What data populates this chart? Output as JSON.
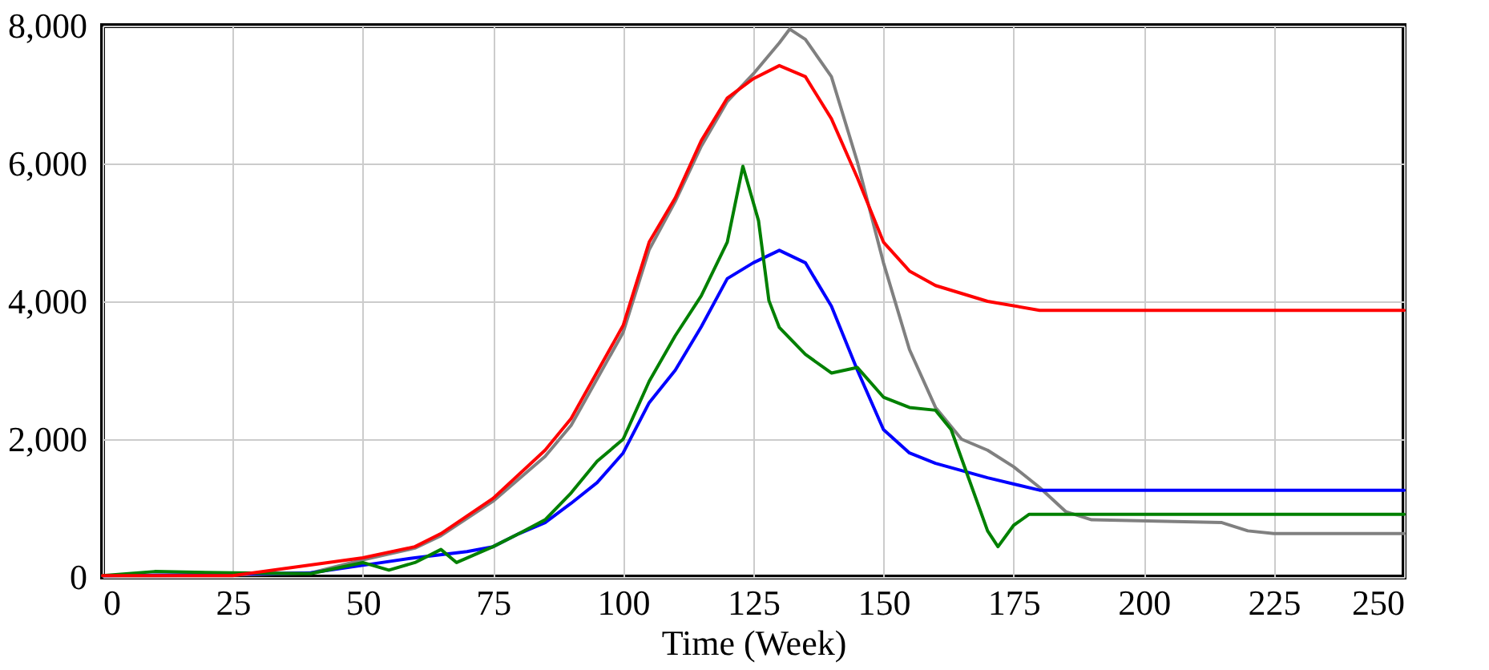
{
  "chart_data": {
    "type": "line",
    "xlabel": "Time (Week)",
    "xlim": [
      0,
      250
    ],
    "xticks": [
      0,
      25,
      50,
      75,
      100,
      125,
      150,
      175,
      200,
      225,
      250
    ],
    "ylim": [
      0,
      8000
    ],
    "yticks": [
      0,
      {
        "value": 2000,
        "label": "2,000"
      },
      {
        "value": 4000,
        "label": "4,000"
      },
      {
        "value": 6000,
        "label": "6,000"
      },
      {
        "value": 8000,
        "label": "8,000"
      }
    ],
    "grid": true,
    "line_style": "solid",
    "x": [
      0,
      10,
      25,
      40,
      50,
      60,
      65,
      75,
      85,
      90,
      100,
      105,
      110,
      115,
      120,
      125,
      130,
      132,
      135,
      140,
      145,
      150,
      155,
      160,
      165,
      170,
      175,
      180,
      185,
      190,
      215,
      220,
      225,
      250
    ],
    "series": [
      {
        "color": "#808080",
        "values": [
          20,
          20,
          30,
          60,
          250,
          420,
          600,
          1100,
          1750,
          2200,
          3550,
          4750,
          5450,
          6250,
          6900,
          7300,
          7750,
          7950,
          7800,
          7260,
          6020,
          4560,
          3300,
          2460,
          2000,
          1840,
          1600,
          1300,
          950,
          830,
          790,
          670,
          630,
          630
        ]
      },
      {
        "color": "#0000ff",
        "x": [
          0,
          25,
          40,
          50,
          60,
          70,
          75,
          80,
          85,
          90,
          95,
          100,
          105,
          110,
          115,
          120,
          125,
          130,
          135,
          140,
          145,
          150,
          155,
          160,
          170,
          180,
          250
        ],
        "values": [
          20,
          40,
          60,
          170,
          280,
          370,
          440,
          630,
          790,
          1070,
          1370,
          1800,
          2530,
          3000,
          3630,
          4330,
          4560,
          4740,
          4560,
          3930,
          3000,
          2140,
          1800,
          1650,
          1440,
          1260,
          1260
        ]
      },
      {
        "color": "#008000",
        "x": [
          0,
          10,
          25,
          40,
          50,
          55,
          60,
          65,
          68,
          75,
          80,
          85,
          90,
          95,
          100,
          105,
          110,
          115,
          120,
          123,
          126,
          128,
          130,
          135,
          140,
          145,
          150,
          155,
          160,
          163,
          167,
          170,
          172,
          175,
          178,
          250
        ],
        "values": [
          20,
          80,
          60,
          50,
          210,
          100,
          210,
          400,
          210,
          440,
          630,
          830,
          1220,
          1680,
          2000,
          2840,
          3500,
          4080,
          4860,
          5960,
          5170,
          4010,
          3620,
          3230,
          2960,
          3040,
          2610,
          2460,
          2420,
          2140,
          1300,
          670,
          440,
          750,
          910,
          910
        ]
      },
      {
        "color": "#ff0000",
        "x": [
          0,
          25,
          50,
          60,
          65,
          75,
          85,
          90,
          100,
          105,
          110,
          115,
          120,
          125,
          130,
          135,
          140,
          145,
          150,
          155,
          160,
          170,
          180,
          250
        ],
        "values": [
          20,
          20,
          280,
          440,
          630,
          1140,
          1840,
          2300,
          3650,
          4860,
          5500,
          6330,
          6950,
          7230,
          7420,
          7260,
          6650,
          5790,
          4860,
          4440,
          4230,
          4000,
          3870,
          3870
        ]
      }
    ]
  }
}
